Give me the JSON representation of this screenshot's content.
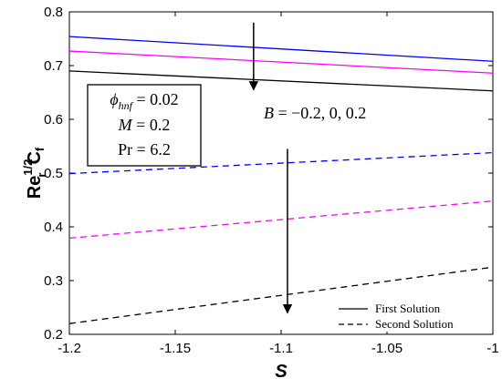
{
  "chart_data": {
    "type": "line",
    "xlabel": "S",
    "ylabel": {
      "main": "Re",
      "sup": "1/2",
      "sub": "r",
      "tail": "C",
      "tail_sub": "f"
    },
    "xlim": [
      -1.2,
      -1.0
    ],
    "ylim": [
      0.2,
      0.8
    ],
    "x_ticks": [
      -1.2,
      -1.15,
      -1.1,
      -1.05,
      -1.0
    ],
    "x_tick_labels": [
      "-1.2",
      "-1.15",
      "-1.1",
      "-1.05",
      "-1"
    ],
    "y_ticks": [
      0.2,
      0.3,
      0.4,
      0.5,
      0.6,
      0.7,
      0.8
    ],
    "y_tick_labels": [
      "0.2",
      "0.3",
      "0.4",
      "0.5",
      "0.6",
      "0.7",
      "0.8"
    ],
    "grid": false,
    "series": [
      {
        "color": "#0000ff",
        "dash": "solid",
        "x": [
          -1.2,
          -1.0
        ],
        "y": [
          0.754,
          0.708
        ]
      },
      {
        "color": "#ff00ff",
        "dash": "solid",
        "x": [
          -1.2,
          -1.0
        ],
        "y": [
          0.727,
          0.686
        ]
      },
      {
        "color": "#000000",
        "dash": "solid",
        "x": [
          -1.2,
          -1.0
        ],
        "y": [
          0.69,
          0.653
        ]
      },
      {
        "color": "#0000ff",
        "dash": "dashed",
        "x": [
          -1.2,
          -1.0
        ],
        "y": [
          0.499,
          0.538
        ]
      },
      {
        "color": "#ff00ff",
        "dash": "dashed",
        "x": [
          -1.2,
          -1.0
        ],
        "y": [
          0.379,
          0.448
        ]
      },
      {
        "color": "#000000",
        "dash": "dashed",
        "x": [
          -1.2,
          -1.0
        ],
        "y": [
          0.22,
          0.325
        ]
      }
    ],
    "legend": {
      "placement": "bottom-right",
      "entries": [
        {
          "label": "First Solution",
          "dash": "solid"
        },
        {
          "label": "Second Solution",
          "dash": "dashed"
        }
      ]
    },
    "annotations": {
      "params_box": [
        "φhnf = 0.02",
        "M = 0.2",
        "Pr = 6.2"
      ],
      "B_label": "B = −0.2, 0, 0.2",
      "arrows": [
        {
          "x": -1.113,
          "y_from": 0.78,
          "y_to": 0.655
        },
        {
          "x": -1.097,
          "y_from": 0.545,
          "y_to": 0.24
        }
      ]
    }
  }
}
